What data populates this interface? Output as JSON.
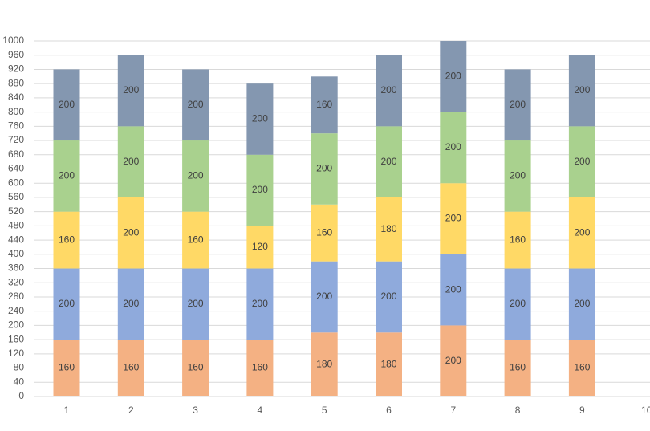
{
  "chart_data": {
    "type": "bar",
    "stacked": true,
    "title": "",
    "xlabel": "",
    "ylabel": "",
    "categories": [
      "1",
      "2",
      "3",
      "4",
      "5",
      "6",
      "7",
      "8",
      "9"
    ],
    "x_ticks": [
      "1",
      "2",
      "3",
      "4",
      "5",
      "6",
      "7",
      "8",
      "9",
      "10"
    ],
    "ylim": [
      0,
      1000
    ],
    "y_ticks": [
      0,
      40,
      80,
      120,
      160,
      200,
      240,
      280,
      320,
      360,
      400,
      440,
      480,
      520,
      560,
      600,
      640,
      680,
      720,
      760,
      800,
      840,
      880,
      920,
      960,
      1000
    ],
    "grid": true,
    "legend": "none",
    "data_labels": true,
    "series": [
      {
        "color": "#f4b183",
        "values": [
          160,
          160,
          160,
          160,
          180,
          180,
          200,
          160,
          160
        ]
      },
      {
        "color": "#8faadc",
        "values": [
          200,
          200,
          200,
          200,
          200,
          200,
          200,
          200,
          200
        ]
      },
      {
        "color": "#ffd966",
        "values": [
          160,
          200,
          160,
          120,
          160,
          180,
          200,
          160,
          200
        ]
      },
      {
        "color": "#a9d18e",
        "values": [
          200,
          200,
          200,
          200,
          200,
          200,
          200,
          200,
          200
        ]
      },
      {
        "color": "#8497b0",
        "values": [
          200,
          200,
          200,
          200,
          160,
          200,
          200,
          200,
          200
        ]
      }
    ]
  }
}
